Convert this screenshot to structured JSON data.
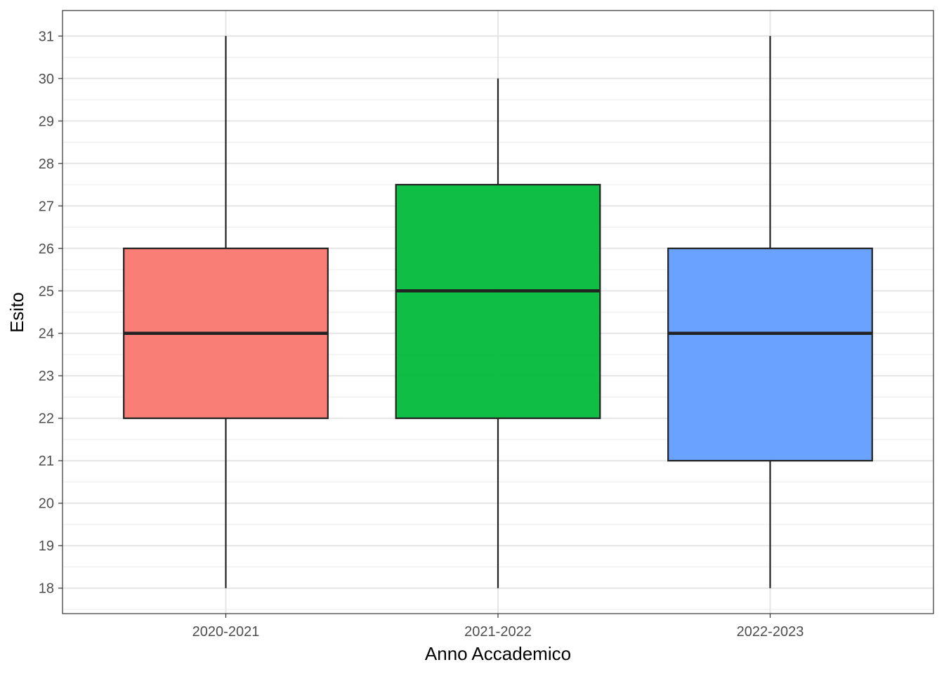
{
  "chart_data": {
    "type": "boxplot",
    "xlabel": "Anno Accademico",
    "ylabel": "Esito",
    "categories": [
      "2020-2021",
      "2021-2022",
      "2022-2023"
    ],
    "ylim": [
      17.4,
      31.6
    ],
    "yticks": [
      18,
      19,
      20,
      21,
      22,
      23,
      24,
      25,
      26,
      27,
      28,
      29,
      30,
      31
    ],
    "grid": true,
    "legend": "none",
    "boxes": [
      {
        "category": "2020-2021",
        "min": 18,
        "q1": 22,
        "median": 24,
        "q3": 26,
        "max": 31,
        "color": "#F8766D"
      },
      {
        "category": "2021-2022",
        "min": 18,
        "q1": 22,
        "median": 25,
        "q3": 27.5,
        "max": 30,
        "color": "#00BA38"
      },
      {
        "category": "2022-2023",
        "min": 18,
        "q1": 21,
        "median": 24,
        "q3": 26,
        "max": 31,
        "color": "#619CFF"
      }
    ]
  }
}
